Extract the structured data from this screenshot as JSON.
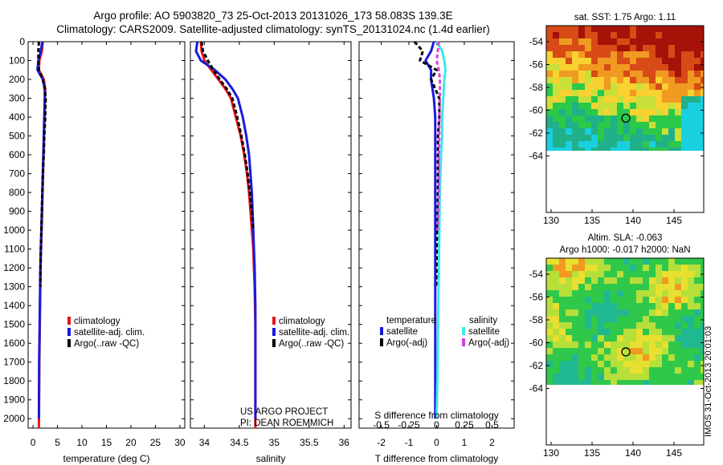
{
  "header": {
    "title_line1": "Argo profile: AO 5903820_73 25-Oct-2013 20131026_173 58.083S 139.3E",
    "title_line2": "Climatology: CARS2009. Satellite-adjusted climatology: synTS_20131024.nc (1.4d earlier)"
  },
  "colors": {
    "climatology": "#e8141a",
    "satellite": "#1a1adc",
    "argo": "#000000",
    "salinity_satellite": "#3ee8e8",
    "salinity_argo": "#e23ee2"
  },
  "panels": {
    "temperature": {
      "xlabel": "temperature (deg C)",
      "xticks": [
        "0",
        "5",
        "10",
        "15",
        "20",
        "25",
        "30"
      ],
      "legend": [
        "climatology",
        "satellite-adj. clim.",
        "Argo(..raw -QC)"
      ]
    },
    "salinity": {
      "xlabel": "salinity",
      "xticks": [
        "34",
        "34.5",
        "35",
        "35.5",
        "36"
      ],
      "legend": [
        "climatology",
        "satellite-adj. clim.",
        "Argo(..raw -QC)"
      ],
      "credit_line1": "US ARGO PROJECT",
      "credit_line2": "PI: DEAN ROEMMICH"
    },
    "difference": {
      "xlabel": "T difference from climatology",
      "xticks": [
        "-2",
        "-1",
        "0",
        "1",
        "2"
      ],
      "top_axis_label": "S difference from climatology",
      "top_ticks": [
        "-0.5",
        "-0.25",
        "0",
        "0.25",
        "0.5"
      ],
      "legend_temperature_title": "temperature",
      "legend_salinity_title": "salinity",
      "legend_temperature": [
        "satellite",
        "Argo(-adj)"
      ],
      "legend_salinity": [
        "satellite",
        "Argo(-adj)"
      ]
    }
  },
  "depth_ticks": [
    "0",
    "100",
    "200",
    "300",
    "400",
    "500",
    "600",
    "700",
    "800",
    "900",
    "1000",
    "1100",
    "1200",
    "1300",
    "1400",
    "1500",
    "1600",
    "1700",
    "1800",
    "1900",
    "2000"
  ],
  "maps": {
    "sst": {
      "title": "sat. SST: 1.75 Argo: 1.11",
      "yticks": [
        "-54",
        "-56",
        "-58",
        "-60",
        "-62",
        "-64"
      ],
      "xticks": [
        "130",
        "135",
        "140",
        "145"
      ]
    },
    "sla": {
      "title_line1": "Altim. SLA: -0.063",
      "title_line2": "Argo h1000: -0.017 h2000: NaN",
      "yticks": [
        "-54",
        "-56",
        "-58",
        "-60",
        "-62",
        "-64"
      ],
      "xticks": [
        "130",
        "135",
        "140",
        "145"
      ]
    }
  },
  "footer": {
    "imos": "IMOS 31-Oct-2013 20:01:03"
  },
  "chart_data": [
    {
      "type": "line",
      "title": "",
      "xlabel": "temperature (deg C)",
      "ylabel": "",
      "xlim": [
        -1,
        31
      ],
      "ylim": [
        2050,
        0
      ],
      "series": [
        {
          "name": "climatology",
          "x": [
            2.0,
            1.8,
            1.3,
            1.2,
            2.2,
            2.5,
            2.45,
            2.35,
            2.25,
            2.15,
            2.05,
            1.95,
            1.85,
            1.75,
            1.65,
            1.55,
            1.5,
            1.45,
            1.4,
            1.35,
            1.3,
            1.25,
            1.2
          ],
          "y": [
            0,
            50,
            100,
            150,
            200,
            250,
            300,
            400,
            500,
            600,
            700,
            800,
            900,
            1000,
            1100,
            1200,
            1300,
            1400,
            1500,
            1600,
            1700,
            1900,
            2050
          ]
        },
        {
          "name": "satellite-adj. clim.",
          "x": [
            1.9,
            1.6,
            1.1,
            0.9,
            2.0,
            2.4,
            2.4,
            2.3,
            2.2,
            2.1,
            2.0,
            1.9,
            1.8,
            1.7,
            1.6,
            1.5,
            1.45,
            1.4,
            1.35,
            1.3,
            1.25,
            1.2
          ],
          "y": [
            0,
            50,
            100,
            150,
            200,
            250,
            300,
            400,
            500,
            600,
            700,
            800,
            900,
            1000,
            1100,
            1200,
            1300,
            1400,
            1500,
            1600,
            1700,
            2000
          ]
        },
        {
          "name": "Argo(..raw -QC)",
          "x": [
            1.2,
            1.1,
            1.1,
            1.2,
            2.0,
            2.4,
            2.6,
            2.5,
            2.3,
            2.2,
            2.0,
            1.9,
            1.8,
            1.7,
            1.6,
            1.55,
            1.5
          ],
          "y": [
            0,
            50,
            100,
            150,
            200,
            250,
            300,
            400,
            500,
            600,
            700,
            800,
            900,
            1000,
            1100,
            1200,
            1300
          ]
        }
      ]
    },
    {
      "type": "line",
      "title": "",
      "xlabel": "salinity",
      "ylabel": "",
      "xlim": [
        33.8,
        36.1
      ],
      "ylim": [
        2050,
        0
      ],
      "series": [
        {
          "name": "climatology",
          "x": [
            33.95,
            33.96,
            34.0,
            34.1,
            34.2,
            34.3,
            34.38,
            34.45,
            34.52,
            34.57,
            34.61,
            34.64,
            34.66,
            34.68,
            34.7,
            34.71,
            34.72,
            34.725,
            34.73,
            34.73,
            34.73,
            34.73
          ],
          "y": [
            0,
            50,
            100,
            150,
            200,
            250,
            300,
            400,
            500,
            600,
            700,
            800,
            900,
            1000,
            1100,
            1200,
            1300,
            1400,
            1500,
            1600,
            1800,
            2050
          ]
        },
        {
          "name": "satellite-adj. clim.",
          "x": [
            33.9,
            33.88,
            33.95,
            34.15,
            34.3,
            34.4,
            34.48,
            34.55,
            34.6,
            34.64,
            34.66,
            34.68,
            34.69,
            34.7,
            34.71,
            34.72,
            34.725,
            34.73,
            34.73,
            34.73,
            34.73
          ],
          "y": [
            0,
            50,
            100,
            150,
            200,
            250,
            300,
            400,
            500,
            600,
            700,
            800,
            900,
            1000,
            1100,
            1200,
            1300,
            1400,
            1500,
            1600,
            2000
          ]
        },
        {
          "name": "Argo(..raw -QC)",
          "x": [
            33.96,
            33.98,
            34.05,
            34.13,
            34.22,
            34.32,
            34.4,
            34.47,
            34.53,
            34.58,
            34.62,
            34.65,
            34.68,
            34.7
          ],
          "y": [
            0,
            50,
            100,
            150,
            200,
            250,
            300,
            400,
            500,
            600,
            700,
            800,
            900,
            1000
          ]
        }
      ]
    },
    {
      "type": "line",
      "title": "",
      "xlabel": "T difference from climatology",
      "x2label": "S difference from climatology",
      "ylabel": "",
      "xlim": [
        -2.8,
        2.8
      ],
      "x2lim": [
        -0.7,
        0.7
      ],
      "ylim": [
        2050,
        0
      ],
      "series": [
        {
          "name": "temperature satellite",
          "axis": "T",
          "x": [
            -0.1,
            -0.2,
            -0.4,
            -0.2,
            -0.2,
            -0.1,
            -0.05,
            -0.05,
            -0.05,
            -0.05,
            -0.05,
            -0.05,
            -0.05,
            -0.05,
            -0.05,
            -0.05,
            -0.05,
            -0.05,
            -0.05
          ],
          "y": [
            0,
            50,
            100,
            150,
            200,
            300,
            400,
            500,
            600,
            700,
            800,
            900,
            1000,
            1100,
            1200,
            1400,
            1600,
            1800,
            2000
          ]
        },
        {
          "name": "temperature Argo(-adj)",
          "axis": "T",
          "x": [
            -0.8,
            -0.5,
            -0.6,
            0.0,
            -0.2,
            0.1,
            0.1,
            0.05,
            0.05,
            0.05,
            0.05,
            0.03,
            0.03
          ],
          "y": [
            0,
            50,
            100,
            150,
            200,
            300,
            400,
            500,
            600,
            700,
            800,
            1000,
            1300
          ]
        },
        {
          "name": "salinity satellite",
          "axis": "S",
          "x": [
            0.0,
            0.05,
            0.07,
            0.08,
            0.07,
            0.06,
            0.05,
            0.05,
            0.04,
            0.035,
            0.03,
            0.025,
            0.02,
            0.015,
            0.01,
            0.0
          ],
          "y": [
            0,
            50,
            100,
            150,
            200,
            300,
            400,
            500,
            600,
            700,
            800,
            1000,
            1200,
            1400,
            1700,
            2000
          ]
        },
        {
          "name": "salinity Argo(-adj)",
          "axis": "S",
          "x": [
            0.02,
            0.01,
            0.0,
            0.02,
            0.03,
            0.03,
            0.025,
            0.025,
            0.02,
            0.02,
            0.02,
            0.015,
            0.01
          ],
          "y": [
            0,
            50,
            100,
            150,
            200,
            300,
            400,
            500,
            600,
            700,
            800,
            900,
            1000
          ]
        }
      ]
    }
  ]
}
